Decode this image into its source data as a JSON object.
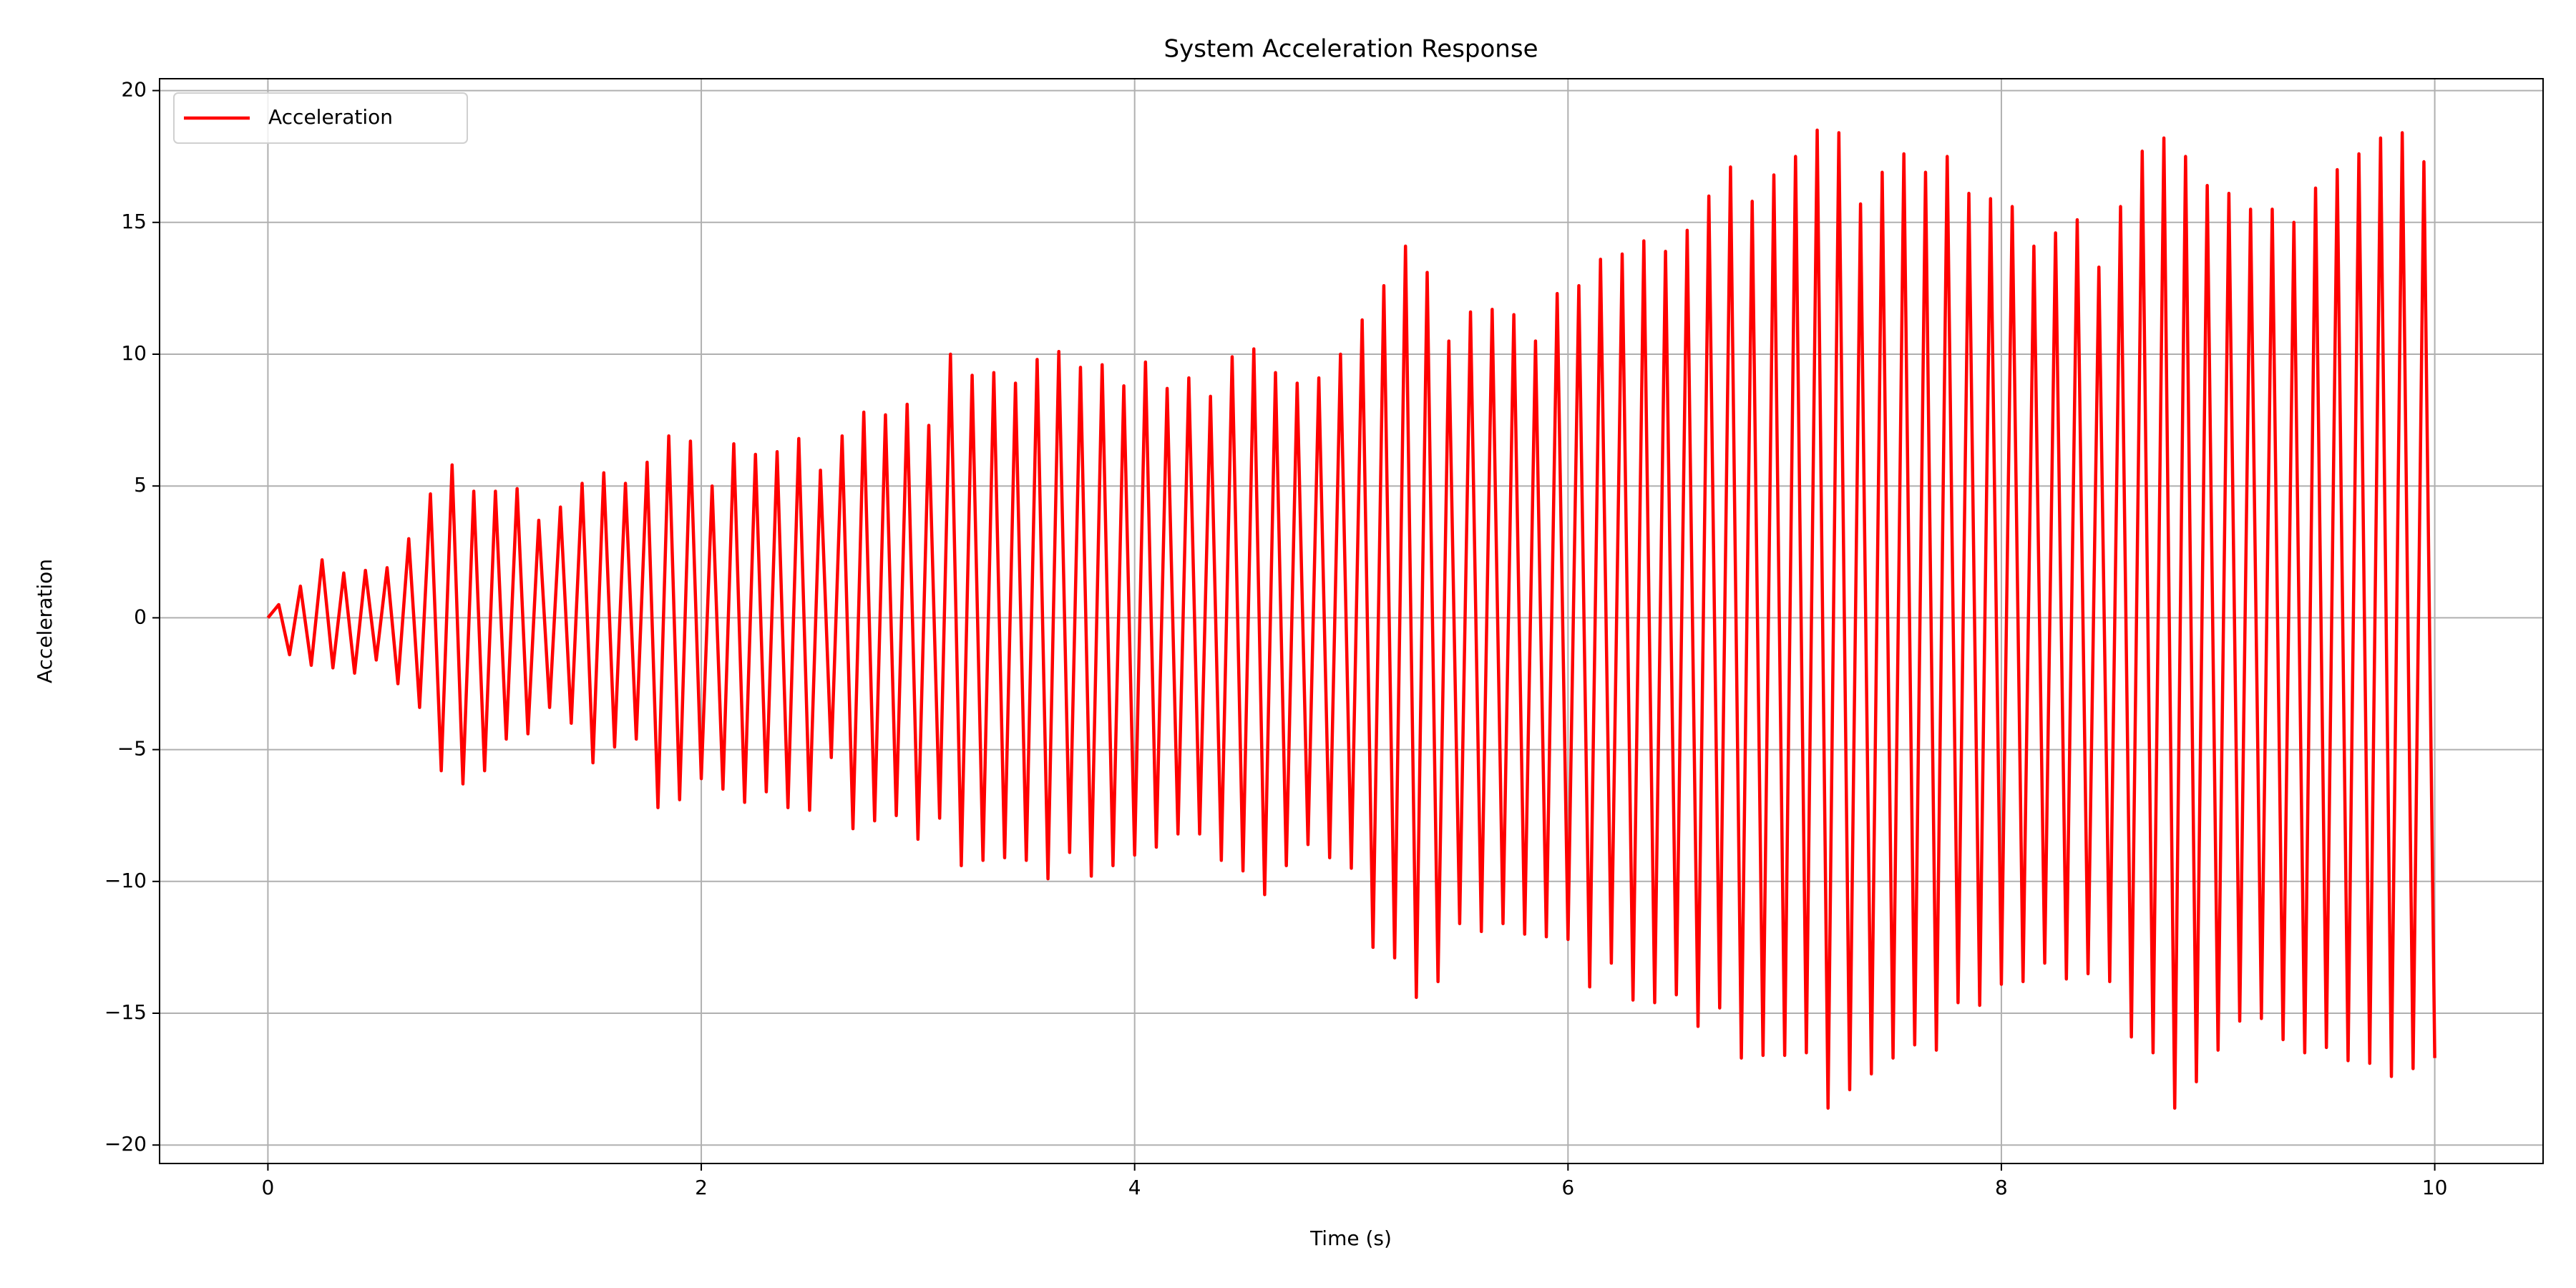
{
  "chart_data": {
    "type": "line",
    "title": "System Acceleration Response",
    "x_label": "Time (s)",
    "y_label": "Acceleration",
    "x": [
      0,
      0.05,
      0.1,
      0.15,
      0.2,
      0.25,
      0.3,
      0.35,
      0.4,
      0.45,
      0.5,
      0.55,
      0.6,
      0.65,
      0.7,
      0.75,
      0.8,
      0.85,
      0.9,
      0.95,
      1,
      1.05,
      1.1,
      1.15,
      1.2,
      1.25,
      1.3,
      1.35,
      1.4,
      1.45,
      1.5,
      1.55,
      1.6,
      1.65,
      1.7,
      1.75,
      1.8,
      1.85,
      1.9,
      1.95,
      2,
      2.05,
      2.1,
      2.15,
      2.2,
      2.25,
      2.3,
      2.35,
      2.4,
      2.45,
      2.5,
      2.55,
      2.6,
      2.65,
      2.7,
      2.75,
      2.8,
      2.85,
      2.9,
      2.95,
      3,
      3.05,
      3.1,
      3.15,
      3.2,
      3.25,
      3.3,
      3.35,
      3.4,
      3.45,
      3.5,
      3.55,
      3.6,
      3.65,
      3.7,
      3.75,
      3.8,
      3.85,
      3.9,
      3.95,
      4,
      4.05,
      4.1,
      4.15,
      4.2,
      4.25,
      4.3,
      4.35,
      4.4,
      4.45,
      4.5,
      4.55,
      4.6,
      4.65,
      4.7,
      4.75,
      4.8,
      4.85,
      4.9,
      4.95,
      5,
      5.05,
      5.1,
      5.15,
      5.2,
      5.25,
      5.3,
      5.35,
      5.4,
      5.45,
      5.5,
      5.55,
      5.6,
      5.65,
      5.7,
      5.75,
      5.8,
      5.85,
      5.9,
      5.95,
      6,
      6.05,
      6.1,
      6.15,
      6.2,
      6.25,
      6.3,
      6.35,
      6.4,
      6.45,
      6.5,
      6.55,
      6.6,
      6.65,
      6.7,
      6.75,
      6.8,
      6.85,
      6.9,
      6.95,
      7,
      7.05,
      7.1,
      7.15,
      7.2,
      7.25,
      7.3,
      7.35,
      7.4,
      7.45,
      7.5,
      7.55,
      7.6,
      7.65,
      7.7,
      7.75,
      7.8,
      7.85,
      7.9,
      7.95,
      8,
      8.05,
      8.1,
      8.15,
      8.2,
      8.25,
      8.3,
      8.35,
      8.4,
      8.45,
      8.5,
      8.55,
      8.6,
      8.65,
      8.7,
      8.75,
      8.8,
      8.85,
      8.9,
      8.95,
      9,
      9.05,
      9.1,
      9.15,
      9.2,
      9.25,
      9.3,
      9.35,
      9.4,
      9.45,
      9.5,
      9.55,
      9.6,
      9.65,
      9.7,
      9.75,
      9.8,
      9.85,
      9.9,
      9.95,
      10
    ],
    "series": [
      {
        "name": "Acceleration",
        "color": "#ff0000",
        "values": [
          0,
          0.5,
          -1.4,
          1.2,
          -1.8,
          2.2,
          -1.9,
          1.7,
          -2.1,
          1.8,
          -1.6,
          1.9,
          -2.5,
          3.0,
          -3.4,
          4.7,
          -5.8,
          5.8,
          -6.3,
          4.8,
          -5.8,
          4.8,
          -4.6,
          4.9,
          -4.4,
          3.7,
          -3.4,
          4.2,
          -4.0,
          5.1,
          -5.5,
          5.5,
          -4.9,
          5.1,
          -4.6,
          5.9,
          -7.2,
          6.9,
          -6.9,
          6.7,
          -6.1,
          5.0,
          -6.5,
          6.6,
          -7.0,
          6.2,
          -6.6,
          6.3,
          -7.2,
          6.8,
          -7.3,
          5.6,
          -5.3,
          6.9,
          -8.0,
          7.8,
          -7.7,
          7.7,
          -7.5,
          8.1,
          -8.4,
          7.3,
          -7.6,
          10.0,
          -9.4,
          9.2,
          -9.2,
          9.3,
          -9.1,
          8.9,
          -9.2,
          9.8,
          -9.9,
          10.1,
          -8.9,
          9.5,
          -9.8,
          9.6,
          -9.4,
          8.8,
          -9.0,
          9.7,
          -8.7,
          8.7,
          -8.2,
          9.1,
          -8.2,
          8.4,
          -9.2,
          9.9,
          -9.6,
          10.2,
          -10.5,
          9.3,
          -9.4,
          8.9,
          -8.6,
          9.1,
          -9.1,
          10.0,
          -9.5,
          11.3,
          -12.5,
          12.6,
          -12.9,
          14.1,
          -14.4,
          13.1,
          -13.8,
          10.5,
          -11.6,
          11.6,
          -11.9,
          11.7,
          -11.6,
          11.5,
          -12.0,
          10.5,
          -12.1,
          12.3,
          -12.2,
          12.6,
          -14.0,
          13.6,
          -13.1,
          13.8,
          -14.5,
          14.3,
          -14.6,
          13.9,
          -14.3,
          14.7,
          -15.5,
          16.0,
          -14.8,
          17.1,
          -16.7,
          15.8,
          -16.6,
          16.8,
          -16.6,
          17.5,
          -16.5,
          18.5,
          -18.6,
          18.4,
          -17.9,
          15.7,
          -17.3,
          16.9,
          -16.7,
          17.6,
          -16.2,
          16.9,
          -16.4,
          17.5,
          -14.6,
          16.1,
          -14.7,
          15.9,
          -13.9,
          15.6,
          -13.8,
          14.1,
          -13.1,
          14.6,
          -13.7,
          15.1,
          -13.5,
          13.3,
          -13.8,
          15.6,
          -15.9,
          17.7,
          -16.5,
          18.2,
          -18.6,
          17.5,
          -17.6,
          16.4,
          -16.4,
          16.1,
          -15.3,
          15.5,
          -15.2,
          15.5,
          -16.0,
          15.0,
          -16.5,
          16.3,
          -16.3,
          17.0,
          -16.8,
          17.6,
          -16.9,
          18.2,
          -17.4,
          18.4,
          -17.1,
          17.3,
          -16.7
        ]
      }
    ],
    "xlim": [
      -0.5,
      10.5
    ],
    "ylim": [
      -20.7,
      20.45
    ],
    "xticks": [
      0,
      2,
      4,
      6,
      8,
      10
    ],
    "yticks": [
      {
        "value": -20,
        "label": "−20"
      },
      {
        "value": -15,
        "label": "−15"
      },
      {
        "value": -10,
        "label": "−10"
      },
      {
        "value": -5,
        "label": "−5"
      },
      0,
      5,
      10,
      15,
      20
    ],
    "grid": true,
    "legend": "upper left"
  }
}
